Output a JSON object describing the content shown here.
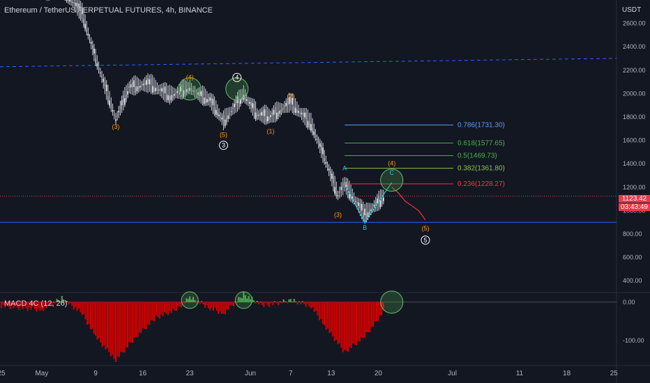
{
  "header": {
    "title": "Ethereum / TetherUS PERPETUAL FUTURES, 4h, BINANCE",
    "unit": "USDT",
    "last_price": "1123.42",
    "countdown": "03:43:49"
  },
  "indicator": {
    "label": "MACD 4C (12, 26)"
  },
  "chart_data": [
    {
      "type": "line",
      "series": [
        {
          "values": [
            {
              "x": "2022-04-25",
              "y": 2980
            },
            {
              "x": "2022-04-28",
              "y": 2900
            },
            {
              "x": "2022-05-01",
              "y": 2850
            },
            {
              "x": "2022-05-04",
              "y": 2900
            },
            {
              "x": "2022-05-07",
              "y": 2680
            },
            {
              "x": "2022-05-09",
              "y": 2300
            },
            {
              "x": "2022-05-12",
              "y": 1780
            },
            {
              "x": "2022-05-14",
              "y": 2050
            },
            {
              "x": "2022-05-17",
              "y": 2080
            },
            {
              "x": "2022-05-20",
              "y": 1980
            },
            {
              "x": "2022-05-23",
              "y": 2050
            },
            {
              "x": "2022-05-24",
              "y": 2000
            },
            {
              "x": "2022-05-26",
              "y": 1940
            },
            {
              "x": "2022-05-28",
              "y": 1760
            },
            {
              "x": "2022-05-31",
              "y": 1990
            },
            {
              "x": "2022-06-02",
              "y": 1820
            },
            {
              "x": "2022-06-04",
              "y": 1800
            },
            {
              "x": "2022-06-07",
              "y": 1920
            },
            {
              "x": "2022-06-10",
              "y": 1740
            },
            {
              "x": "2022-06-12",
              "y": 1450
            },
            {
              "x": "2022-06-14",
              "y": 1130
            },
            {
              "x": "2022-06-15",
              "y": 1220
            },
            {
              "x": "2022-06-18",
              "y": 960
            },
            {
              "x": "2022-06-21",
              "y": 1123
            }
          ]
        }
      ],
      "y_axis_ticks": [
        "2600.00",
        "2400.00",
        "2200.00",
        "2000.00",
        "1800.00",
        "1600.00",
        "1400.00",
        "1200.00",
        "1000.00",
        "800.00",
        "600.00",
        "400.00"
      ],
      "x_axis_ticks": [
        "25",
        "May",
        "9",
        "16",
        "23",
        "Jun",
        "7",
        "13",
        "20",
        "Jul",
        "11",
        "18",
        "25"
      ],
      "ylim": [
        300,
        2800
      ],
      "horizontal_lines": [
        {
          "y": 2230,
          "color": "#2962ff",
          "style": "dashed"
        },
        {
          "y": 900,
          "color": "#2962ff",
          "style": "solid"
        }
      ],
      "fibonacci": [
        {
          "label": "0.786(1731.30)",
          "level": 1731.3,
          "color": "#5b9cf6"
        },
        {
          "label": "0.618(1577.65)",
          "level": 1577.65,
          "color": "#4caf50"
        },
        {
          "label": "0.5(1469.73)",
          "level": 1469.73,
          "color": "#4caf50"
        },
        {
          "label": "0.382(1361.80)",
          "level": 1361.8,
          "color": "#8bc34a"
        },
        {
          "label": "0.236(1228.27)",
          "level": 1228.27,
          "color": "#f23645"
        }
      ],
      "wave_labels": [
        {
          "text": "(1)",
          "color": "#ff9800",
          "x": "2022-04-25",
          "y": 2860
        },
        {
          "text": "(3)",
          "color": "#ff9800",
          "x": "2022-05-12",
          "y": 1700
        },
        {
          "text": "(4)",
          "color": "#ff9800",
          "x": "2022-05-23",
          "y": 2120
        },
        {
          "text": "4",
          "color": "#ffffff",
          "x": "2022-05-30",
          "y": 2120
        },
        {
          "text": "(5)",
          "color": "#ff9800",
          "x": "2022-05-28",
          "y": 1630
        },
        {
          "text": "3",
          "color": "#ffffff",
          "x": "2022-05-28",
          "y": 1540
        },
        {
          "text": "(2)",
          "color": "#ff9800",
          "x": "2022-06-07",
          "y": 1960
        },
        {
          "text": "(1)",
          "color": "#ff9800",
          "x": "2022-06-04",
          "y": 1660
        },
        {
          "text": "A",
          "color": "#26c6da",
          "x": "2022-06-15",
          "y": 1345
        },
        {
          "text": "(3)",
          "color": "#ff9800",
          "x": "2022-06-14",
          "y": 945
        },
        {
          "text": "B",
          "color": "#26c6da",
          "x": "2022-06-18",
          "y": 835
        },
        {
          "text": "(4)",
          "color": "#ff9800",
          "x": "2022-06-22",
          "y": 1385
        },
        {
          "text": "C",
          "color": "#26c6da",
          "x": "2022-06-22",
          "y": 1305
        },
        {
          "text": "(5)",
          "color": "#ff9800",
          "x": "2022-06-27",
          "y": 830
        },
        {
          "text": "5",
          "color": "#ffffff",
          "x": "2022-06-27",
          "y": 730
        }
      ],
      "highlight_circles": [
        {
          "x": "2022-05-23",
          "y": 2040
        },
        {
          "x": "2022-05-30",
          "y": 2040
        },
        {
          "x": "2022-06-22",
          "y": 1260
        }
      ],
      "projection_path": [
        {
          "x": "2022-06-22",
          "y": 1200
        },
        {
          "x": "2022-06-23",
          "y": 1150
        },
        {
          "x": "2022-06-24",
          "y": 1080
        },
        {
          "x": "2022-06-25",
          "y": 1040
        },
        {
          "x": "2022-06-26",
          "y": 1000
        },
        {
          "x": "2022-06-27",
          "y": 920
        }
      ]
    },
    {
      "type": "bar",
      "title": "MACD 4C (12, 26)",
      "y_axis_ticks": [
        "0.00",
        "-100.00"
      ],
      "ylim": [
        -165,
        25
      ],
      "values_summary": "histogram",
      "series": [
        {
          "values": [
            {
              "x": "2022-04-25",
              "y": -10
            },
            {
              "x": "2022-05-01",
              "y": -20
            },
            {
              "x": "2022-05-04",
              "y": 10
            },
            {
              "x": "2022-05-07",
              "y": -30
            },
            {
              "x": "2022-05-09",
              "y": -90
            },
            {
              "x": "2022-05-12",
              "y": -150
            },
            {
              "x": "2022-05-15",
              "y": -90
            },
            {
              "x": "2022-05-18",
              "y": -40
            },
            {
              "x": "2022-05-21",
              "y": -20
            },
            {
              "x": "2022-05-23",
              "y": 12
            },
            {
              "x": "2022-05-26",
              "y": -15
            },
            {
              "x": "2022-05-28",
              "y": -30
            },
            {
              "x": "2022-05-31",
              "y": 20
            },
            {
              "x": "2022-06-03",
              "y": -10
            },
            {
              "x": "2022-06-07",
              "y": 5
            },
            {
              "x": "2022-06-10",
              "y": -10
            },
            {
              "x": "2022-06-12",
              "y": -60
            },
            {
              "x": "2022-06-15",
              "y": -130
            },
            {
              "x": "2022-06-18",
              "y": -90
            },
            {
              "x": "2022-06-21",
              "y": -20
            }
          ]
        }
      ],
      "highlight_circles": [
        {
          "x": "2022-05-23",
          "y": 5
        },
        {
          "x": "2022-05-31",
          "y": 5
        },
        {
          "x": "2022-06-22",
          "y": 0
        }
      ]
    }
  ],
  "colors": {
    "background": "#131722",
    "up": "#26a69a",
    "down": "#ef5350",
    "macd_down": "#d50000",
    "macd_up": "#4caf50"
  }
}
